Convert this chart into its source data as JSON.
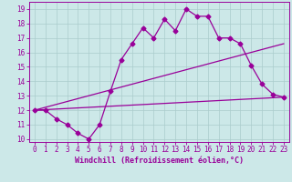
{
  "background_color": "#cce8e8",
  "line_color": "#990099",
  "grid_color": "#aacccc",
  "xlabel": "Windchill (Refroidissement éolien,°C)",
  "xlabel_color": "#990099",
  "tick_color": "#990099",
  "spine_color": "#990099",
  "xlim": [
    -0.5,
    23.5
  ],
  "ylim": [
    9.8,
    19.5
  ],
  "yticks": [
    10,
    11,
    12,
    13,
    14,
    15,
    16,
    17,
    18,
    19
  ],
  "xticks": [
    0,
    1,
    2,
    3,
    4,
    5,
    6,
    7,
    8,
    9,
    10,
    11,
    12,
    13,
    14,
    15,
    16,
    17,
    18,
    19,
    20,
    21,
    22,
    23
  ],
  "line1_x": [
    0,
    1,
    2,
    3,
    4,
    5,
    6,
    7,
    8,
    9,
    10,
    11,
    12,
    13,
    14,
    15,
    16,
    17,
    18,
    19,
    20,
    21,
    22,
    23
  ],
  "line1_y": [
    12.0,
    12.0,
    11.4,
    11.0,
    10.4,
    10.0,
    11.0,
    13.3,
    15.5,
    16.6,
    17.7,
    17.0,
    18.3,
    17.5,
    19.0,
    18.5,
    18.5,
    17.0,
    17.0,
    16.6,
    15.1,
    13.8,
    13.1,
    12.9
  ],
  "line2_x": [
    0,
    23
  ],
  "line2_y": [
    12.0,
    16.6
  ],
  "line3_x": [
    0,
    23
  ],
  "line3_y": [
    12.0,
    12.9
  ],
  "marker": "D",
  "marker_size": 2.5,
  "line_width": 0.9,
  "tick_labelsize": 5.5,
  "xlabel_fontsize": 6.0
}
